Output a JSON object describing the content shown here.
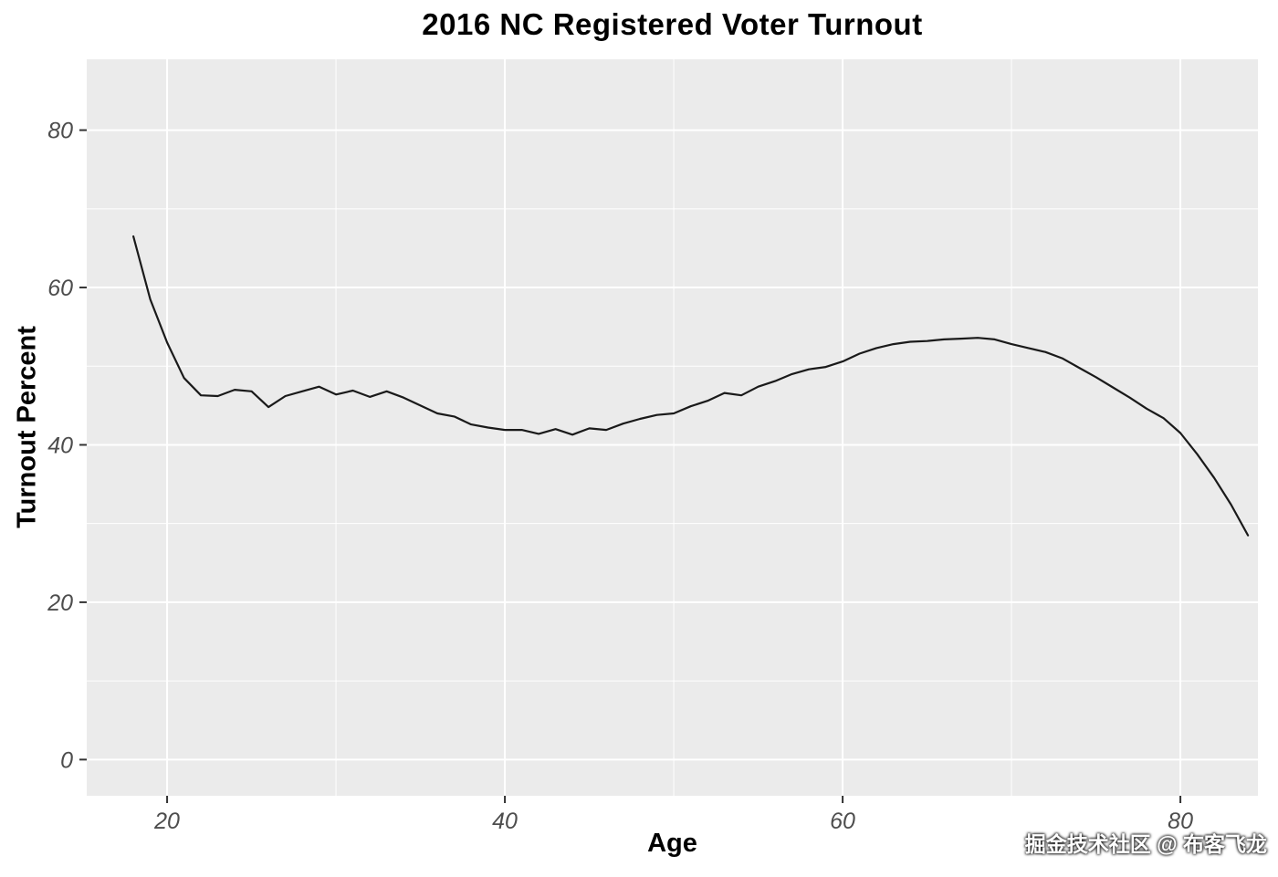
{
  "watermark": "掘金技术社区 @ 布客飞龙",
  "colors": {
    "panel_background": "#EBEBEB",
    "grid_major": "#FFFFFF",
    "grid_minor": "#FFFFFF",
    "line": "#1A1A1A",
    "tick_mark": "#333333",
    "tick_label": "#4D4D4D",
    "title_text": "#000000",
    "page_background": "#FFFFFF"
  },
  "chart_data": {
    "type": "line",
    "title": "2016 NC Registered Voter Turnout",
    "xlabel": "Age",
    "ylabel": "Turnout Percent",
    "legend_position": "none",
    "grid": true,
    "xlim": [
      15.24,
      84.59
    ],
    "ylim": [
      -4.6,
      89
    ],
    "x_ticks": [
      20,
      40,
      60,
      80
    ],
    "y_ticks": [
      0,
      20,
      40,
      60,
      80
    ],
    "x_minor_ticks": [
      30,
      50,
      70
    ],
    "y_minor_ticks": [
      10,
      30,
      50,
      70
    ],
    "x": [
      18,
      19,
      20,
      21,
      22,
      23,
      24,
      25,
      26,
      27,
      28,
      29,
      30,
      31,
      32,
      33,
      34,
      35,
      36,
      37,
      38,
      39,
      40,
      41,
      42,
      43,
      44,
      45,
      46,
      47,
      48,
      49,
      50,
      51,
      52,
      53,
      54,
      55,
      56,
      57,
      58,
      59,
      60,
      61,
      62,
      63,
      64,
      65,
      66,
      67,
      68,
      69,
      70,
      71,
      72,
      73,
      74,
      75,
      76,
      77,
      78,
      79,
      80,
      81,
      82,
      83,
      84
    ],
    "y": [
      66.5,
      58.5,
      53.0,
      48.5,
      46.3,
      46.2,
      47.0,
      46.8,
      44.8,
      46.2,
      46.8,
      47.4,
      46.4,
      46.9,
      46.1,
      46.8,
      46.0,
      45.0,
      44.0,
      43.6,
      42.6,
      42.2,
      41.9,
      41.9,
      41.4,
      42.0,
      41.3,
      42.1,
      41.9,
      42.7,
      43.3,
      43.8,
      44.0,
      44.9,
      45.6,
      46.6,
      46.3,
      47.4,
      48.1,
      49.0,
      49.6,
      49.9,
      50.6,
      51.6,
      52.3,
      52.8,
      53.1,
      53.2,
      53.4,
      53.5,
      53.6,
      53.4,
      52.8,
      52.3,
      51.8,
      51.0,
      49.8,
      48.6,
      47.3,
      46.0,
      44.6,
      43.4,
      41.5,
      38.8,
      35.8,
      32.4,
      28.5
    ]
  }
}
